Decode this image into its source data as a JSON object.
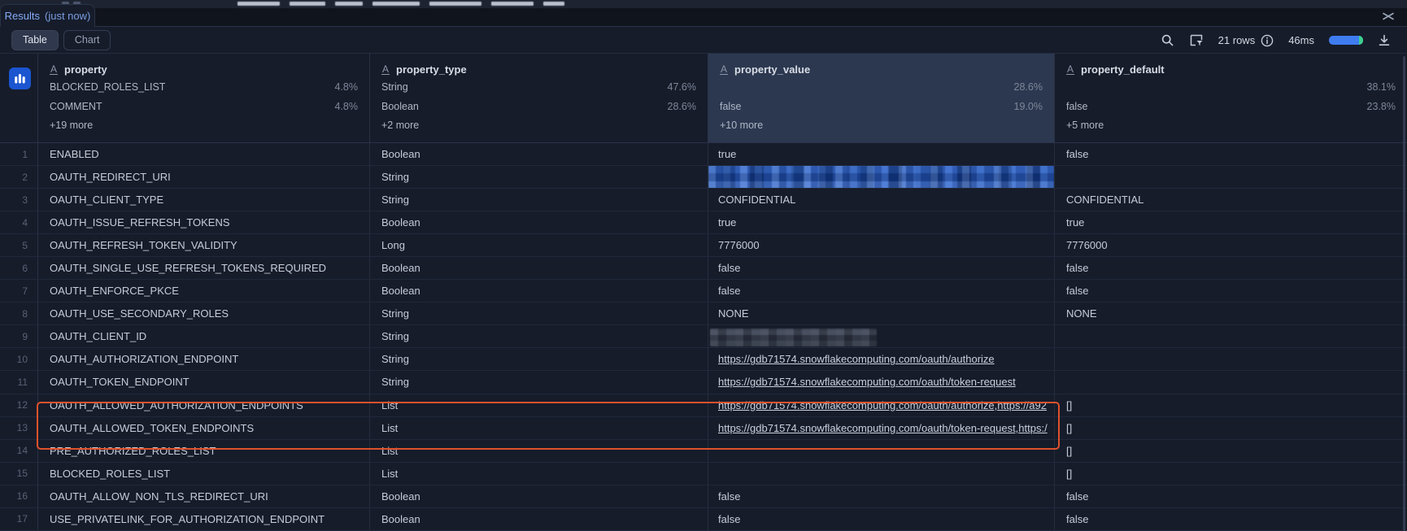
{
  "tabs_bar": {
    "results_label": "Results",
    "freshness": "(just now)"
  },
  "view_toggle": {
    "table_label": "Table",
    "chart_label": "Chart"
  },
  "toolbar": {
    "rows_count": "21 rows",
    "elapsed": "46ms"
  },
  "colors": {
    "accent_blue": "#85abf8",
    "stats_button_blue": "#1b55d0",
    "value_column_highlight": "#2b3850",
    "orange_highlight_box": "#e0522c",
    "progress_blue": "#3f7cf0",
    "progress_green": "#3ecf8e"
  },
  "table": {
    "columns": [
      {
        "name": "property",
        "type_icon": "A",
        "highlighted": false,
        "stats": [
          {
            "label": "BLOCKED_ROLES_LIST",
            "pct": "4.8%"
          },
          {
            "label": "COMMENT",
            "pct": "4.8%"
          }
        ],
        "more": "+19 more"
      },
      {
        "name": "property_type",
        "type_icon": "A",
        "highlighted": false,
        "stats": [
          {
            "label": "String",
            "pct": "47.6%"
          },
          {
            "label": "Boolean",
            "pct": "28.6%"
          }
        ],
        "more": "+2 more"
      },
      {
        "name": "property_value",
        "type_icon": "A",
        "highlighted": true,
        "stats": [
          {
            "label": "",
            "pct": "28.6%"
          },
          {
            "label": "false",
            "pct": "19.0%"
          }
        ],
        "more": "+10 more"
      },
      {
        "name": "property_default",
        "type_icon": "A",
        "highlighted": false,
        "stats": [
          {
            "label": "",
            "pct": "38.1%"
          },
          {
            "label": "false",
            "pct": "23.8%"
          }
        ],
        "more": "+5 more"
      }
    ],
    "rows": [
      {
        "num": "1",
        "property": "ENABLED",
        "type": "Boolean",
        "value": {
          "kind": "text",
          "text": "true"
        },
        "default": "false"
      },
      {
        "num": "2",
        "property": "OAUTH_REDIRECT_URI",
        "type": "String",
        "value": {
          "kind": "redacted-blue",
          "text": ""
        },
        "default": ""
      },
      {
        "num": "3",
        "property": "OAUTH_CLIENT_TYPE",
        "type": "String",
        "value": {
          "kind": "text",
          "text": "CONFIDENTIAL"
        },
        "default": "CONFIDENTIAL"
      },
      {
        "num": "4",
        "property": "OAUTH_ISSUE_REFRESH_TOKENS",
        "type": "Boolean",
        "value": {
          "kind": "text",
          "text": "true"
        },
        "default": "true"
      },
      {
        "num": "5",
        "property": "OAUTH_REFRESH_TOKEN_VALIDITY",
        "type": "Long",
        "value": {
          "kind": "text",
          "text": "7776000"
        },
        "default": "7776000"
      },
      {
        "num": "6",
        "property": "OAUTH_SINGLE_USE_REFRESH_TOKENS_REQUIRED",
        "type": "Boolean",
        "value": {
          "kind": "text",
          "text": "false"
        },
        "default": "false"
      },
      {
        "num": "7",
        "property": "OAUTH_ENFORCE_PKCE",
        "type": "Boolean",
        "value": {
          "kind": "text",
          "text": "false"
        },
        "default": "false"
      },
      {
        "num": "8",
        "property": "OAUTH_USE_SECONDARY_ROLES",
        "type": "String",
        "value": {
          "kind": "text",
          "text": "NONE"
        },
        "default": "NONE"
      },
      {
        "num": "9",
        "property": "OAUTH_CLIENT_ID",
        "type": "String",
        "value": {
          "kind": "redacted-gray",
          "text": ""
        },
        "default": ""
      },
      {
        "num": "10",
        "property": "OAUTH_AUTHORIZATION_ENDPOINT",
        "type": "String",
        "value": {
          "kind": "link",
          "text": "https://gdb71574.snowflakecomputing.com/oauth/authorize"
        },
        "default": ""
      },
      {
        "num": "11",
        "property": "OAUTH_TOKEN_ENDPOINT",
        "type": "String",
        "value": {
          "kind": "link",
          "text": "https://gdb71574.snowflakecomputing.com/oauth/token-request"
        },
        "default": ""
      },
      {
        "num": "12",
        "property": "OAUTH_ALLOWED_AUTHORIZATION_ENDPOINTS",
        "type": "List",
        "value": {
          "kind": "link",
          "text": "https://gdb71574.snowflakecomputing.com/oauth/authorize,https://a92"
        },
        "default": "[]"
      },
      {
        "num": "13",
        "property": "OAUTH_ALLOWED_TOKEN_ENDPOINTS",
        "type": "List",
        "value": {
          "kind": "link",
          "text": "https://gdb71574.snowflakecomputing.com/oauth/token-request,https:/"
        },
        "default": "[]"
      },
      {
        "num": "14",
        "property": "PRE_AUTHORIZED_ROLES_LIST",
        "type": "List",
        "value": {
          "kind": "text",
          "text": ""
        },
        "default": "[]"
      },
      {
        "num": "15",
        "property": "BLOCKED_ROLES_LIST",
        "type": "List",
        "value": {
          "kind": "text",
          "text": ""
        },
        "default": "[]"
      },
      {
        "num": "16",
        "property": "OAUTH_ALLOW_NON_TLS_REDIRECT_URI",
        "type": "Boolean",
        "value": {
          "kind": "text",
          "text": "false"
        },
        "default": "false"
      },
      {
        "num": "17",
        "property": "USE_PRIVATELINK_FOR_AUTHORIZATION_ENDPOINT",
        "type": "Boolean",
        "value": {
          "kind": "text",
          "text": "false"
        },
        "default": "false"
      }
    ]
  },
  "annotation": {
    "highlight_box_rows": "10-11"
  }
}
